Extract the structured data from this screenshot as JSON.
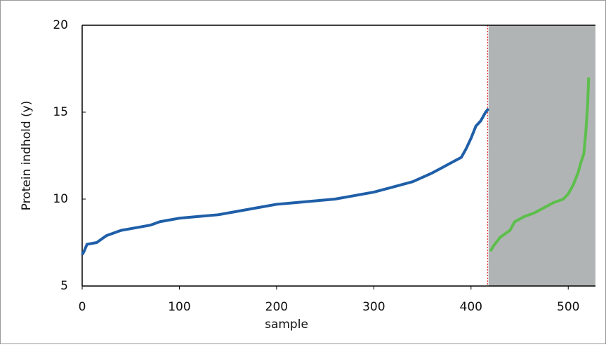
{
  "chart_data": {
    "type": "line",
    "xlabel": "sample",
    "ylabel": "Protein indhold (y)",
    "xlim": [
      0,
      528
    ],
    "ylim": [
      5,
      20
    ],
    "xticks": [
      0,
      100,
      200,
      300,
      400,
      500
    ],
    "yticks": [
      5,
      10,
      15,
      20
    ],
    "grid": false,
    "shaded_region": {
      "xlim": [
        418,
        528
      ],
      "color": "#b1b4b4"
    },
    "vline": {
      "x": 417,
      "color": "#e03030"
    },
    "series": [
      {
        "color": "#1f5fa8",
        "x": [
          0,
          2,
          5,
          15,
          20,
          25,
          30,
          40,
          50,
          60,
          70,
          80,
          90,
          100,
          120,
          140,
          160,
          180,
          200,
          220,
          240,
          260,
          280,
          300,
          320,
          340,
          360,
          370,
          380,
          390,
          395,
          400,
          405,
          410,
          415,
          418
        ],
        "values": [
          6.8,
          7.0,
          7.4,
          7.5,
          7.7,
          7.9,
          8.0,
          8.2,
          8.3,
          8.4,
          8.5,
          8.7,
          8.8,
          8.9,
          9.0,
          9.1,
          9.3,
          9.5,
          9.7,
          9.8,
          9.9,
          10.0,
          10.2,
          10.4,
          10.7,
          11.0,
          11.5,
          11.8,
          12.1,
          12.4,
          12.9,
          13.5,
          14.2,
          14.5,
          15.0,
          15.2
        ]
      },
      {
        "color": "#5cbf4c",
        "x": [
          420,
          423,
          430,
          440,
          445,
          455,
          465,
          475,
          485,
          495,
          500,
          505,
          510,
          513,
          516,
          518,
          520,
          521
        ],
        "values": [
          7.0,
          7.3,
          7.8,
          8.2,
          8.7,
          9.0,
          9.2,
          9.5,
          9.8,
          10.0,
          10.3,
          10.8,
          11.5,
          12.1,
          12.6,
          13.8,
          15.5,
          17.0
        ]
      }
    ]
  }
}
